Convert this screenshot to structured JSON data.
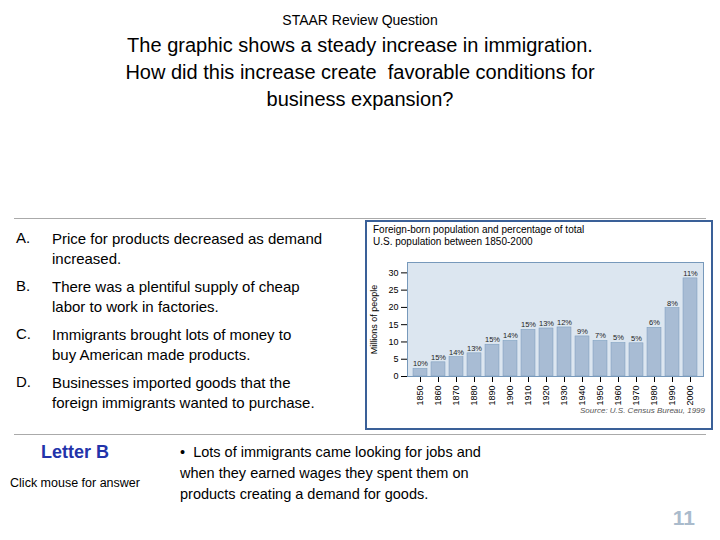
{
  "title": "STAAR Review Question",
  "annotations": [
    "The graphic shows a steady increase in immigration.\nHow did this increase create  favorable conditions for\nbusiness expansion?",
    "A.",
    "Price for products decreased as demand\nincreased.",
    "B.",
    "There was a plentiful supply of cheap\nlabor to work in factories.",
    "C.",
    "Immigrants brought lots of money to\nbuy American made products.",
    "D.",
    "Businesses imported goods that the\nforeign immigrants wanted to purchase.",
    "Letter B",
    "Click mouse for answer",
    "•  Lots of immigrants came looking for jobs and\nwhen they earned wages they spent them on\nproducts creating a demand for goods.",
    "11"
  ],
  "chart_data": {
    "type": "bar",
    "title": "Foreign-born population and percentage of total",
    "subtitle": "U.S. population between 1850-2000",
    "categories": [
      "1850",
      "1860",
      "1870",
      "1880",
      "1890",
      "1900",
      "1910",
      "1920",
      "1930",
      "1940",
      "1950",
      "1960",
      "1970",
      "1980",
      "1990",
      "2000"
    ],
    "values": [
      2.2,
      4.1,
      5.6,
      6.7,
      9.2,
      10.3,
      13.5,
      13.9,
      14.2,
      11.6,
      10.3,
      9.7,
      9.6,
      14.1,
      19.8,
      28.4
    ],
    "percentages": [
      "10%",
      "15%",
      "14%",
      "13%",
      "15%",
      "14%",
      "15%",
      "13%",
      "12%",
      "9%",
      "7%",
      "5%",
      "5%",
      "6%",
      "8%",
      "11%"
    ],
    "ylabel": "Millions of people",
    "ylim": [
      0,
      33
    ],
    "yticks": [
      0,
      5,
      10,
      15,
      20,
      25,
      30
    ],
    "color": "#a8bcd4",
    "grid": false,
    "annotations": [
      "Source: U.S. Census Bureau, 1999"
    ]
  }
}
